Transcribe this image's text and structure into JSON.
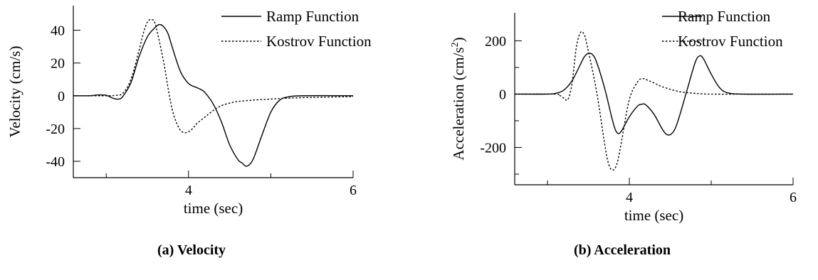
{
  "chart_data": [
    {
      "type": "line",
      "caption": "(a) Velocity",
      "xlabel": "time (sec)",
      "ylabel": "Velocity (cm/s)",
      "xlim": [
        2.6,
        6.0
      ],
      "ylim": [
        -50,
        55
      ],
      "xticks": [
        4,
        6
      ],
      "xticks_minor": [
        3,
        5
      ],
      "yticks": [
        -40,
        -20,
        0,
        20,
        40
      ],
      "legend_position": "top-right",
      "series": [
        {
          "name": "Ramp Function",
          "style": "solid",
          "x": [
            2.6,
            2.8,
            2.9,
            3.0,
            3.05,
            3.1,
            3.15,
            3.2,
            3.3,
            3.4,
            3.5,
            3.6,
            3.65,
            3.7,
            3.75,
            3.8,
            3.9,
            4.0,
            4.1,
            4.15,
            4.2,
            4.3,
            4.4,
            4.5,
            4.6,
            4.65,
            4.7,
            4.75,
            4.8,
            4.9,
            5.0,
            5.1,
            5.2,
            5.4,
            6.0
          ],
          "y": [
            0,
            0,
            0.5,
            0.3,
            -0.8,
            -1.8,
            -2.0,
            -0.5,
            8,
            24,
            36,
            42,
            43.5,
            42,
            38,
            30,
            15,
            7.5,
            5,
            3.8,
            2,
            -5,
            -16,
            -30,
            -39,
            -41,
            -43,
            -41.5,
            -37,
            -23,
            -10,
            -3,
            -0.8,
            0,
            0
          ]
        },
        {
          "name": "Kostrov Function",
          "style": "dotted",
          "x": [
            2.6,
            3.0,
            3.1,
            3.2,
            3.3,
            3.4,
            3.45,
            3.5,
            3.55,
            3.6,
            3.7,
            3.75,
            3.8,
            3.85,
            3.9,
            3.95,
            4.0,
            4.05,
            4.1,
            4.2,
            4.3,
            4.4,
            4.5,
            4.6,
            4.8,
            5.0,
            5.2,
            5.5,
            6.0
          ],
          "y": [
            0,
            0,
            0.2,
            1.5,
            10,
            28,
            38,
            45,
            46.5,
            43,
            20,
            5,
            -8,
            -16,
            -21,
            -22.5,
            -22,
            -20,
            -17,
            -13,
            -9,
            -6,
            -4.5,
            -3.5,
            -2.6,
            -2,
            -1.5,
            -1,
            -0.5
          ]
        }
      ]
    },
    {
      "type": "line",
      "caption": "(b) Acceleration",
      "xlabel": "time (sec)",
      "ylabel": "Acceleration (cm/s",
      "ylabel_sup": "2",
      "ylabel_end": ")",
      "xlim": [
        2.6,
        6.0
      ],
      "ylim": [
        -340,
        305
      ],
      "xticks": [
        4,
        6
      ],
      "xticks_minor": [
        3,
        5
      ],
      "yticks": [
        -200,
        0,
        200
      ],
      "yticks_minor": [
        -300,
        -100,
        100
      ],
      "legend_position": "top-right",
      "series": [
        {
          "name": "Ramp Function",
          "style": "solid",
          "x": [
            2.6,
            3.0,
            3.1,
            3.2,
            3.3,
            3.4,
            3.45,
            3.5,
            3.55,
            3.6,
            3.7,
            3.8,
            3.85,
            3.9,
            4.0,
            4.1,
            4.15,
            4.2,
            4.3,
            4.4,
            4.45,
            4.5,
            4.55,
            4.6,
            4.7,
            4.8,
            4.85,
            4.9,
            5.0,
            5.1,
            5.2,
            5.4,
            6.0
          ],
          "y": [
            0,
            0,
            3,
            15,
            50,
            110,
            140,
            153,
            148,
            120,
            20,
            -105,
            -145,
            -140,
            -85,
            -45,
            -38,
            -40,
            -75,
            -130,
            -150,
            -152,
            -135,
            -95,
            10,
            115,
            142,
            135,
            75,
            25,
            5,
            0,
            0
          ]
        },
        {
          "name": "Kostrov Function",
          "style": "dotted",
          "x": [
            2.6,
            3.1,
            3.15,
            3.2,
            3.25,
            3.3,
            3.35,
            3.4,
            3.45,
            3.5,
            3.6,
            3.7,
            3.75,
            3.8,
            3.85,
            3.9,
            4.0,
            4.1,
            4.15,
            4.2,
            4.3,
            4.4,
            4.6,
            4.8,
            5.0,
            5.5,
            6.0
          ],
          "y": [
            0,
            0,
            -5,
            -15,
            -20,
            40,
            170,
            230,
            222,
            160,
            10,
            -190,
            -265,
            -285,
            -260,
            -185,
            -20,
            45,
            58,
            55,
            42,
            28,
            10,
            3,
            0,
            0,
            0
          ]
        }
      ]
    }
  ]
}
